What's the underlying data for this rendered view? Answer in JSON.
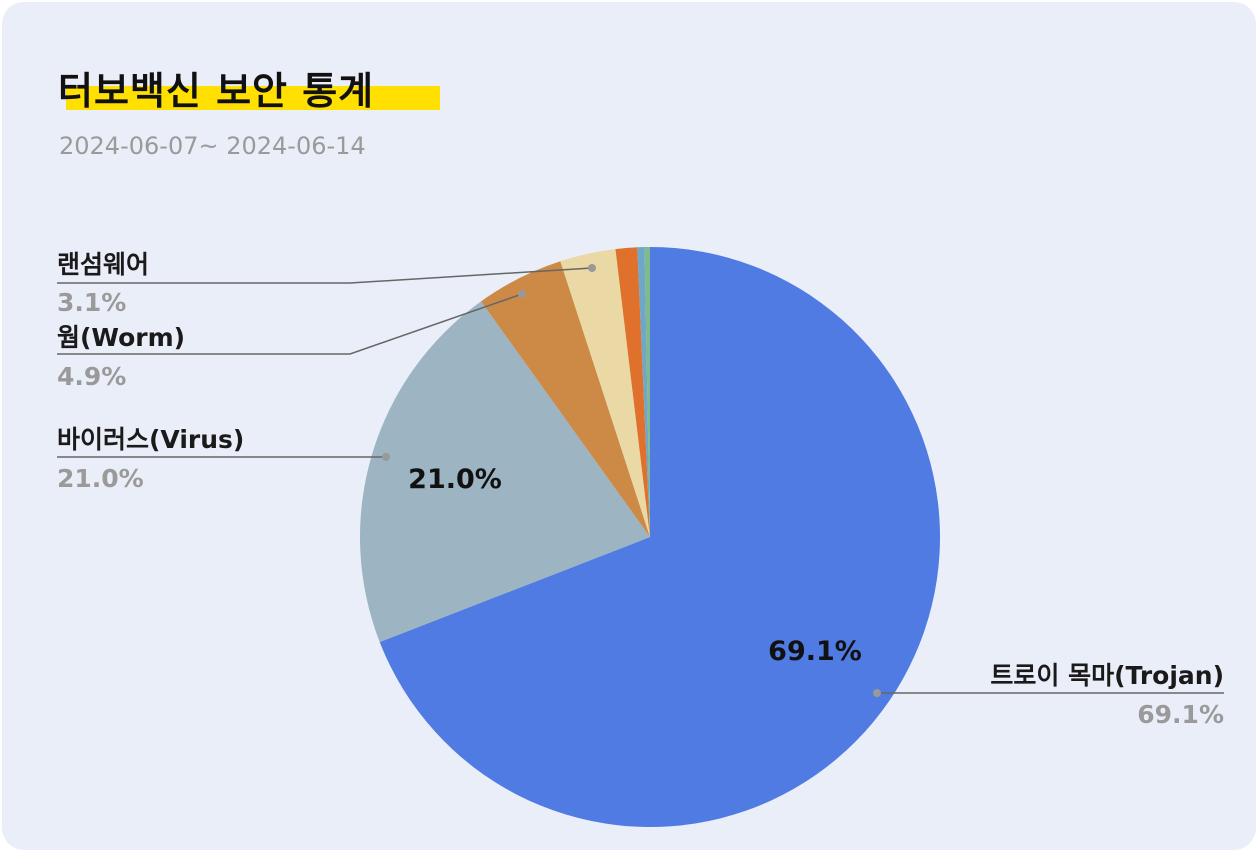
{
  "header": {
    "title": "터보백신 보안 통계",
    "date_range": "2024-06-07~ 2024-06-14"
  },
  "colors": {
    "background": "#eaeef8",
    "title_highlight": "#ffe000",
    "leader_line": "#666666"
  },
  "chart_data": {
    "type": "pie",
    "title": "",
    "slices": [
      {
        "name": "트로이 목마(Trojan)",
        "value": 69.1,
        "label": "69.1%",
        "color": "#4f7be3",
        "inside_label": "69.1%"
      },
      {
        "name": "바이러스(Virus)",
        "value": 21.0,
        "label": "21.0%",
        "color": "#9db4c2",
        "inside_label": "21.0%"
      },
      {
        "name": "웜(Worm)",
        "value": 4.9,
        "label": "4.9%",
        "color": "#cd8a47"
      },
      {
        "name": "랜섬웨어",
        "value": 3.1,
        "label": "3.1%",
        "color": "#ead9a5"
      },
      {
        "name": "",
        "value": 1.2,
        "color": "#e0712d"
      },
      {
        "name": "",
        "value": 0.4,
        "color": "#6fa7c9"
      },
      {
        "name": "",
        "value": 0.3,
        "color": "#7fba8c"
      }
    ],
    "start_angle": "12 o'clock",
    "direction": "clockwise",
    "legend": "callout labels"
  }
}
